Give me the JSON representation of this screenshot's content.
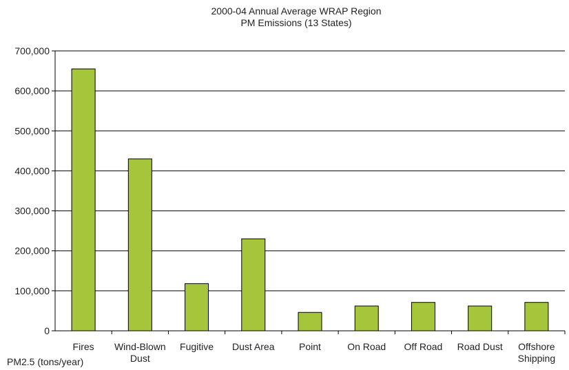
{
  "chart_data": {
    "type": "bar",
    "title": [
      "2000-04 Annual Average WRAP Region",
      "PM Emissions (13 States)"
    ],
    "footnote": "PM2.5 (tons/year)",
    "categories": [
      [
        "Fires"
      ],
      [
        "Wind-Blown",
        "Dust"
      ],
      [
        "Fugitive"
      ],
      [
        "Dust Area"
      ],
      [
        "Point"
      ],
      [
        "On Road"
      ],
      [
        "Off Road"
      ],
      [
        "Road Dust"
      ],
      [
        "Offshore",
        "Shipping"
      ]
    ],
    "values": [
      655000,
      430000,
      118000,
      230000,
      46000,
      62000,
      71000,
      62000,
      71000
    ],
    "ylim": [
      0,
      700000
    ],
    "yticks": [
      0,
      100000,
      200000,
      300000,
      400000,
      500000,
      600000,
      700000
    ],
    "ytick_labels": [
      "0",
      "100,000",
      "200,000",
      "300,000",
      "400,000",
      "500,000",
      "600,000",
      "700,000"
    ],
    "grid": true,
    "bar_color": "#a5c63b",
    "bar_edge_color": "#000000"
  }
}
